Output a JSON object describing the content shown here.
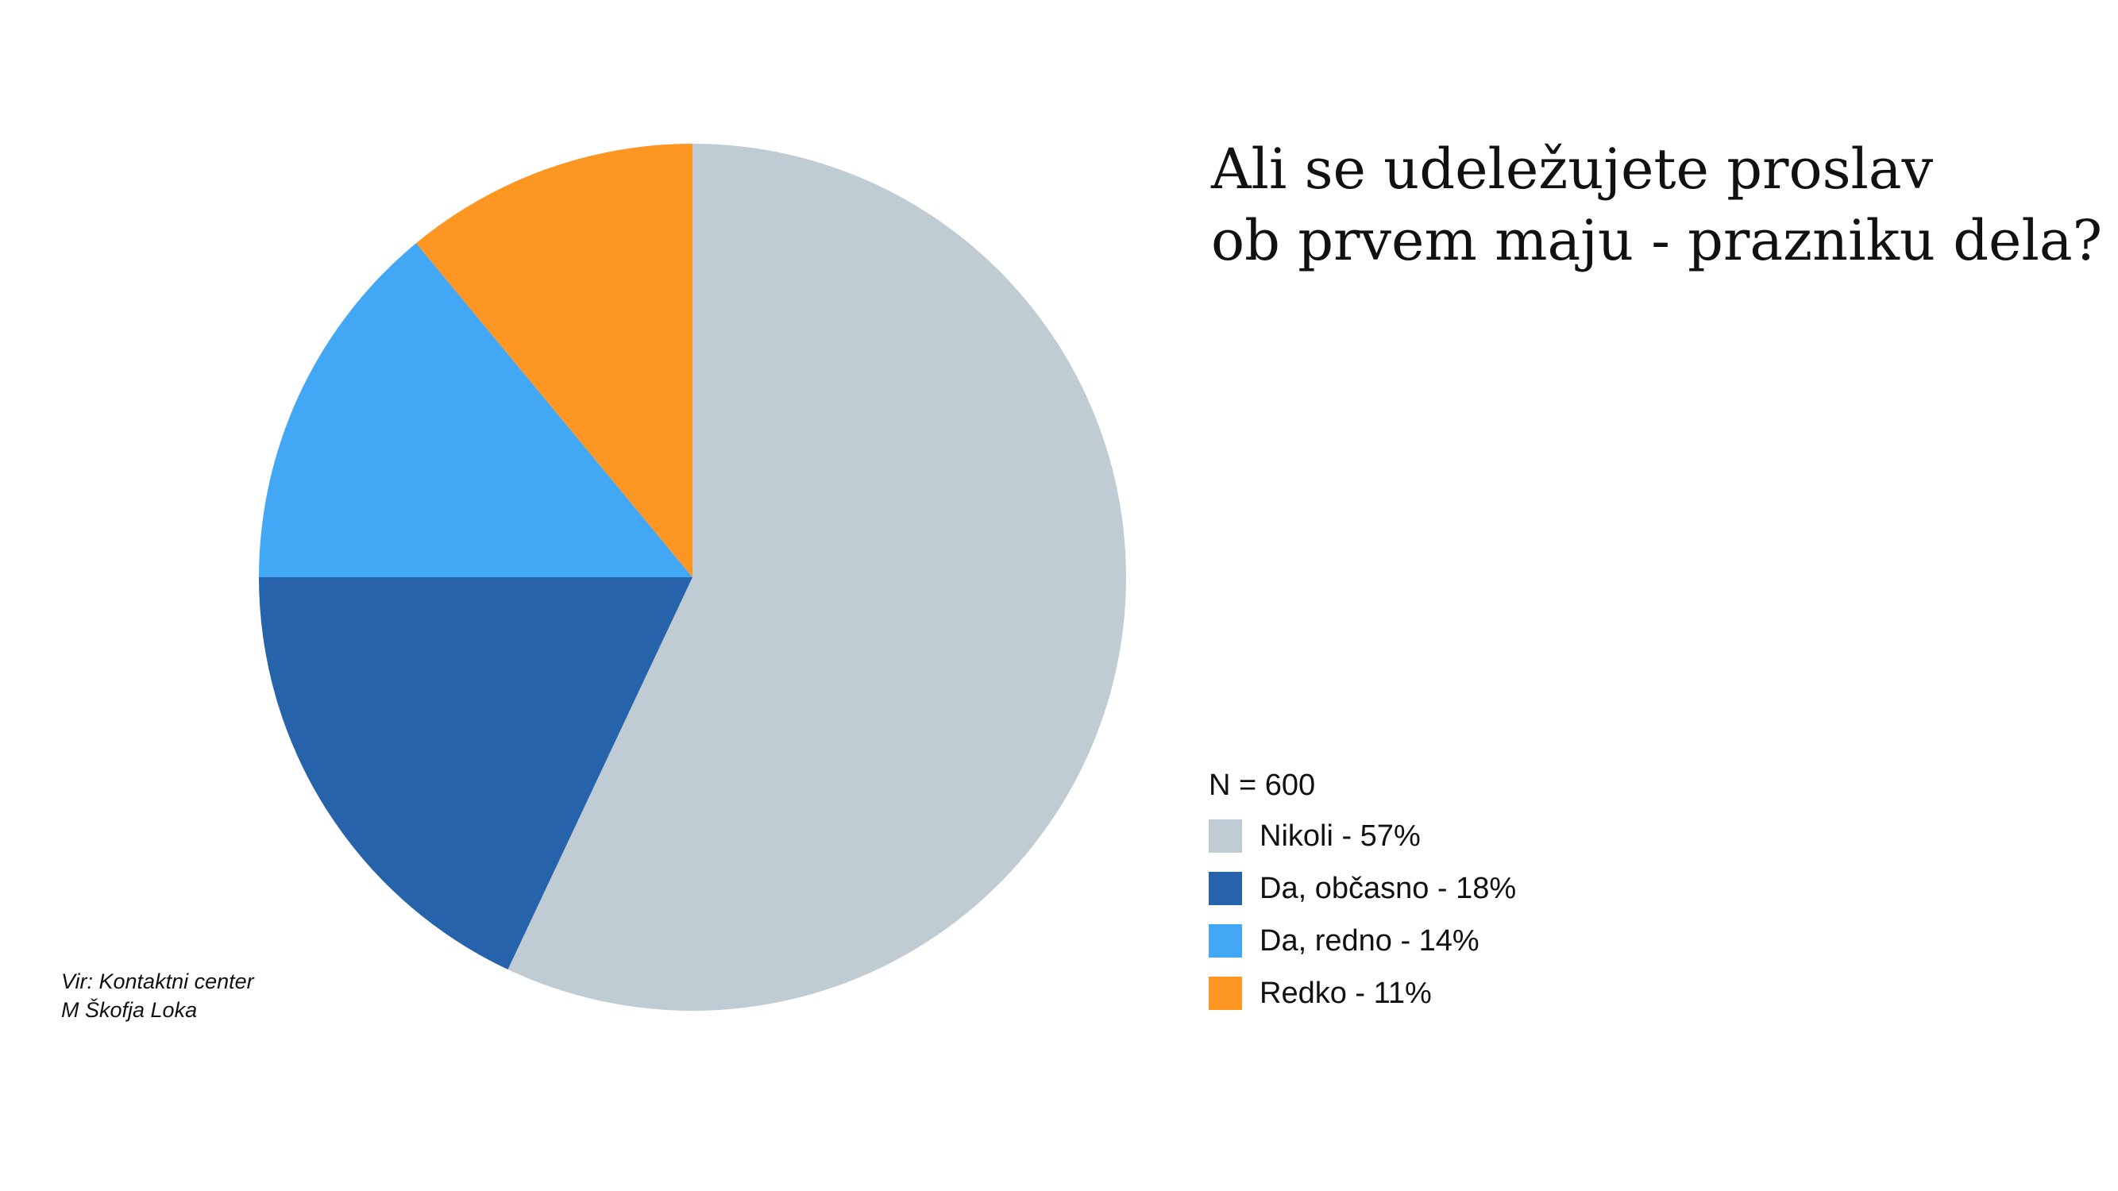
{
  "chart_data": {
    "type": "pie",
    "title_lines": [
      "Ali se udeležujete proslav",
      "ob prvem maju - prazniku dela?"
    ],
    "note": "N = 600",
    "slices": [
      {
        "name": "Nikoli",
        "value": 57,
        "label": "Nikoli - 57%",
        "color": "#bfccd4"
      },
      {
        "name": "Da, občasno",
        "value": 18,
        "label": "Da, občasno - 18%",
        "color": "#2763ab"
      },
      {
        "name": "Da, redno",
        "value": 14,
        "label": "Da, redno - 14%",
        "color": "#42a7f5"
      },
      {
        "name": "Redko",
        "value": 11,
        "label": "Redko - 11%",
        "color": "#fd9622"
      }
    ],
    "start": "12 o'clock",
    "direction": "clockwise",
    "legend_position": "right"
  },
  "source": {
    "line1": "Vir: Kontaktni center",
    "line2": "M Škofja Loka"
  }
}
